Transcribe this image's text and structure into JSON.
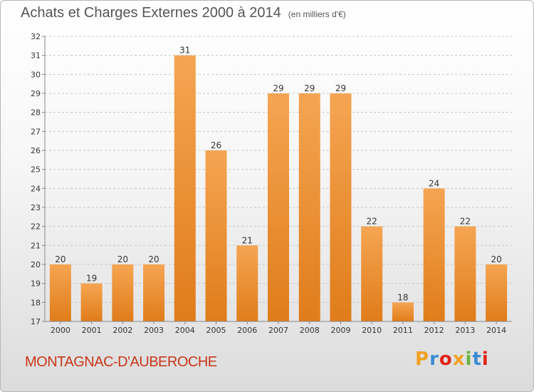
{
  "title": "Achats et Charges Externes 2000 à 2014",
  "unit": "(en milliers d'€)",
  "commune": "MONTAGNAC-D'AUBEROCHE",
  "brand": {
    "letters": [
      "P",
      "r",
      "o",
      "x",
      "i",
      "t",
      "i"
    ],
    "colors": [
      "#f0a020",
      "#3d8bd4",
      "#e2231a",
      "#f0a020",
      "#6cb33f",
      "#3d8bd4",
      "#e2231a"
    ]
  },
  "colors": {
    "bar_top": "#f5a552",
    "bar_bottom": "#e07c1a",
    "grid": "#c8c8c8",
    "axis": "#888888",
    "text": "#333333",
    "commune": "#c8371a"
  },
  "chart_data": {
    "type": "bar",
    "categories": [
      "2000",
      "2001",
      "2002",
      "2003",
      "2004",
      "2005",
      "2006",
      "2007",
      "2008",
      "2009",
      "2010",
      "2011",
      "2012",
      "2013",
      "2014"
    ],
    "values": [
      20,
      19,
      20,
      20,
      31,
      26,
      21,
      29,
      29,
      29,
      22,
      18,
      24,
      22,
      20
    ],
    "ylim": [
      17,
      32
    ],
    "yticks": [
      17,
      18,
      19,
      20,
      21,
      22,
      23,
      24,
      25,
      26,
      27,
      28,
      29,
      30,
      31,
      32
    ],
    "grid": "horizontal dashed",
    "data_labels": true
  }
}
